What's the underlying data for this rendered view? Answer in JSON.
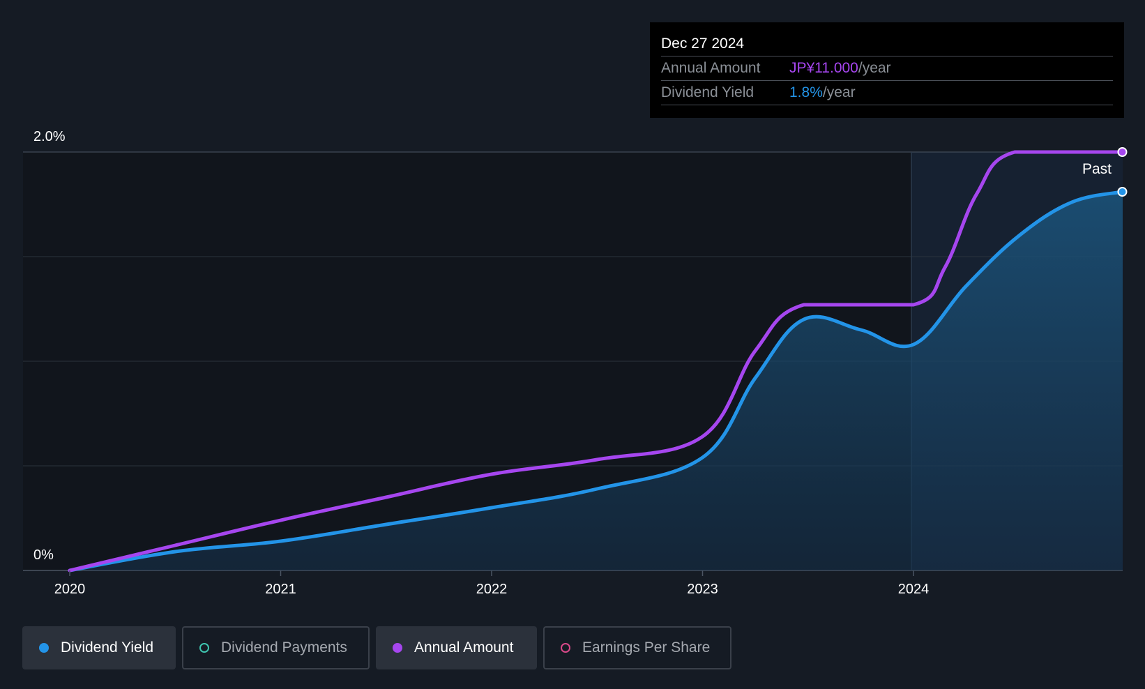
{
  "tooltip": {
    "date": "Dec 27 2024",
    "rows": [
      {
        "label": "Annual Amount",
        "value": "JP¥11.000",
        "unit": "/year",
        "color": "#a646ef"
      },
      {
        "label": "Dividend Yield",
        "value": "1.8%",
        "unit": "/year",
        "color": "#2394e8"
      }
    ]
  },
  "legend": [
    {
      "label": "Dividend Yield",
      "active": true,
      "color": "#2394e8",
      "filled": true
    },
    {
      "label": "Dividend Payments",
      "active": false,
      "color": "#3fc5b0",
      "filled": false
    },
    {
      "label": "Annual Amount",
      "active": true,
      "color": "#a646ef",
      "filled": true
    },
    {
      "label": "Earnings Per Share",
      "active": false,
      "color": "#d9498a",
      "filled": false
    }
  ],
  "chart_data": {
    "type": "line",
    "ylim": [
      0,
      2.0
    ],
    "y_tick_labels": [
      "0%",
      "2.0%"
    ],
    "x_tick_labels": [
      "2020",
      "2021",
      "2022",
      "2023",
      "2024"
    ],
    "past_label": "Past",
    "grid": true,
    "series": [
      {
        "name": "Dividend Yield",
        "color": "#2394e8",
        "x": [
          2020.0,
          2020.5,
          2021.0,
          2021.5,
          2022.0,
          2022.5,
          2023.0,
          2023.25,
          2023.48,
          2023.75,
          2024.0,
          2024.25,
          2024.5,
          2024.75,
          2024.99
        ],
        "values": [
          0.0,
          0.09,
          0.14,
          0.22,
          0.3,
          0.39,
          0.54,
          0.92,
          1.2,
          1.15,
          1.08,
          1.36,
          1.6,
          1.76,
          1.81
        ]
      },
      {
        "name": "Annual Amount",
        "color": "#a646ef",
        "x": [
          2020.0,
          2020.5,
          2021.0,
          2021.5,
          2022.0,
          2022.5,
          2023.0,
          2023.25,
          2023.48,
          2024.0,
          2024.15,
          2024.3,
          2024.48,
          2024.99
        ],
        "values": [
          0.0,
          0.12,
          0.24,
          0.35,
          0.46,
          0.53,
          0.64,
          1.05,
          1.27,
          1.27,
          1.45,
          1.8,
          2.0,
          2.0
        ]
      }
    ]
  }
}
